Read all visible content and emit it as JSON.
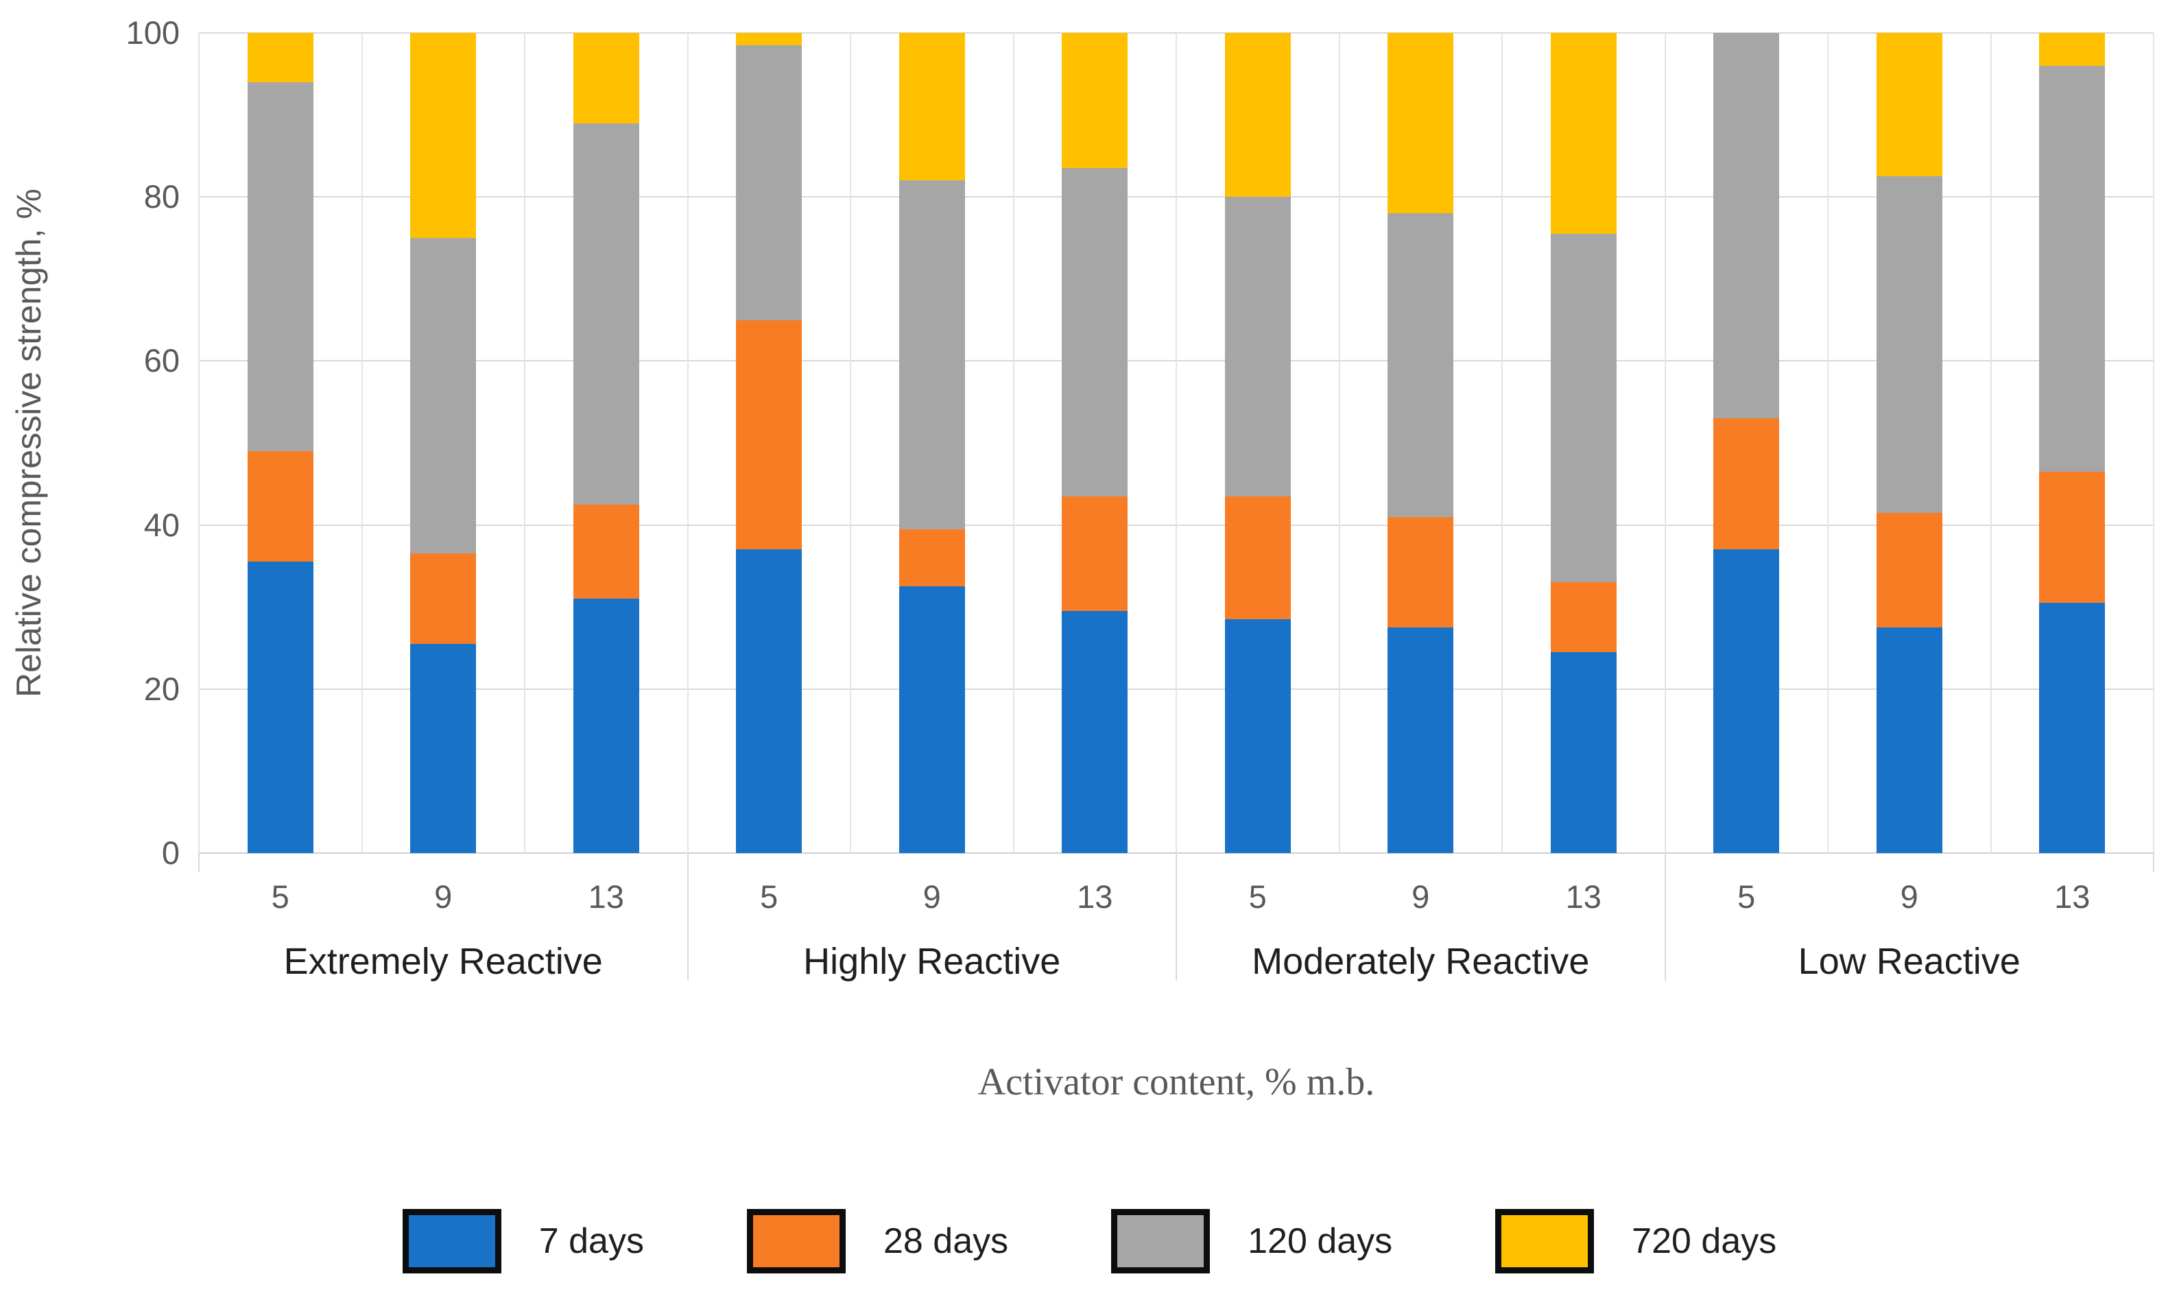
{
  "figure": {
    "y_axis_title": "Relative compressive strength, %",
    "x_axis_title": "Activator content, % m.b.",
    "colors": {
      "blue": "#1772c8",
      "orange": "#f87c24",
      "gray": "#a6a6a6",
      "yellow": "#ffc000",
      "gridline": "#d9d9d9",
      "axis_text": "#595959",
      "label_text": "#1f1f1f"
    }
  },
  "chart_data": {
    "type": "bar",
    "stacked": true,
    "title": "",
    "xlabel": "Activator content, % m.b.",
    "ylabel": "Relative compressive strength, %",
    "ylim": [
      0,
      100
    ],
    "yticks": [
      0,
      20,
      40,
      60,
      80,
      100
    ],
    "grid": "horizontal-major + vertical-category-separators",
    "legend_position": "bottom",
    "series": [
      {
        "name": "7 days",
        "color": "#1772c8"
      },
      {
        "name": "28 days",
        "color": "#f87c24"
      },
      {
        "name": "120 days",
        "color": "#a6a6a6"
      },
      {
        "name": "720 days",
        "color": "#ffc000"
      }
    ],
    "groups": [
      {
        "label": "Extremely Reactive",
        "bars": [
          {
            "x": "5",
            "values": [
              35.5,
              13.5,
              45.0,
              6.0
            ]
          },
          {
            "x": "9",
            "values": [
              25.5,
              11.0,
              38.5,
              25.0
            ]
          },
          {
            "x": "13",
            "values": [
              31.0,
              11.5,
              46.5,
              11.0
            ]
          }
        ]
      },
      {
        "label": "Highly Reactive",
        "bars": [
          {
            "x": "5",
            "values": [
              37.0,
              28.0,
              33.5,
              1.5
            ]
          },
          {
            "x": "9",
            "values": [
              32.5,
              7.0,
              42.5,
              18.0
            ]
          },
          {
            "x": "13",
            "values": [
              29.5,
              14.0,
              40.0,
              16.5
            ]
          }
        ]
      },
      {
        "label": "Moderately Reactive",
        "bars": [
          {
            "x": "5",
            "values": [
              28.5,
              15.0,
              36.5,
              20.0
            ]
          },
          {
            "x": "9",
            "values": [
              27.5,
              13.5,
              37.0,
              22.0
            ]
          },
          {
            "x": "13",
            "values": [
              24.5,
              8.5,
              42.5,
              24.5
            ]
          }
        ]
      },
      {
        "label": "Low Reactive",
        "bars": [
          {
            "x": "5",
            "values": [
              37.0,
              16.0,
              47.0,
              0.0
            ]
          },
          {
            "x": "9",
            "values": [
              27.5,
              14.0,
              41.0,
              17.5
            ]
          },
          {
            "x": "13",
            "values": [
              30.5,
              16.0,
              49.5,
              4.0
            ]
          }
        ]
      }
    ]
  }
}
